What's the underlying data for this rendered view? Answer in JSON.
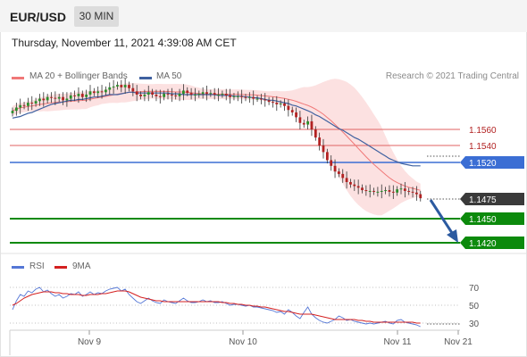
{
  "header": {
    "symbol": "EUR/USD",
    "timeframe": "30 MIN"
  },
  "datetime": "Thursday, November 11, 2021 4:39:08 AM CET",
  "copyright": "Research © 2021 Trading Central",
  "colors": {
    "ma20": "#f07878",
    "bollinger_fill": "#fbd7d7",
    "ma50": "#3f61a0",
    "candle_up": "#2a8f2a",
    "candle_down": "#b22222",
    "resistance": "#e06262",
    "pivot": "#3b6ed4",
    "support": "#0c8a0c",
    "last_price": "#3a3a3a",
    "arrow": "#2c5aa0",
    "rsi": "#5577d6",
    "rsi_ma": "#d42020"
  },
  "chart_data": [
    {
      "type": "candlestick",
      "legend": [
        {
          "name": "MA 20 + Bollinger Bands",
          "color": "#f07878"
        },
        {
          "name": "MA 50",
          "color": "#3f61a0"
        }
      ],
      "x_ticks": [
        "Nov 9",
        "Nov 10",
        "Nov 11",
        "Nov 21"
      ],
      "levels": [
        {
          "label": "1.1560",
          "kind": "resistance"
        },
        {
          "label": "1.1540",
          "kind": "resistance"
        },
        {
          "label": "1.1520",
          "kind": "pivot"
        },
        {
          "label": "1.1475",
          "kind": "last"
        },
        {
          "label": "1.1450",
          "kind": "support"
        },
        {
          "label": "1.1420",
          "kind": "support"
        }
      ],
      "price_scale": {
        "ref_price_a": 1.156,
        "ref_price_b": 1.142
      },
      "candles_close": [
        1.1583,
        1.1587,
        1.159,
        1.1589,
        1.1593,
        1.1592,
        1.1595,
        1.1598,
        1.1596,
        1.16,
        1.1599,
        1.1598,
        1.16,
        1.1596,
        1.1598,
        1.1602,
        1.1601,
        1.1604,
        1.16,
        1.1603,
        1.1607,
        1.1605,
        1.1607,
        1.1606,
        1.1609,
        1.1612,
        1.1613,
        1.1615,
        1.1612,
        1.1615,
        1.1611,
        1.1607,
        1.1603,
        1.1601,
        1.1603,
        1.1606,
        1.1603,
        1.1601,
        1.16,
        1.1604,
        1.1603,
        1.1602,
        1.1601,
        1.1604,
        1.1608,
        1.1605,
        1.1603,
        1.1603,
        1.1604,
        1.1606,
        1.1604,
        1.1605,
        1.1603,
        1.1603,
        1.1604,
        1.1602,
        1.16,
        1.1601,
        1.1601,
        1.16,
        1.1599,
        1.16,
        1.1598,
        1.1598,
        1.1597,
        1.1596,
        1.1594,
        1.1593,
        1.1591,
        1.1592,
        1.1589,
        1.1584,
        1.1581,
        1.1575,
        1.1568,
        1.1566,
        1.157,
        1.156,
        1.155,
        1.154,
        1.1532,
        1.1522,
        1.1515,
        1.1508,
        1.1505,
        1.15,
        1.1495,
        1.1492,
        1.149,
        1.1488,
        1.1485,
        1.1484,
        1.1484,
        1.1483,
        1.1483,
        1.1484,
        1.1485,
        1.1483,
        1.1482,
        1.1486,
        1.1487,
        1.1484,
        1.1483,
        1.1482,
        1.148,
        1.1475
      ],
      "ma50": [
        1.1574,
        1.1575,
        1.1576,
        1.1578,
        1.158,
        1.1581,
        1.1583,
        1.1585,
        1.1587,
        1.1589,
        1.1591,
        1.1592,
        1.1593,
        1.1594,
        1.1595,
        1.1596,
        1.1596,
        1.1597,
        1.1597,
        1.1598,
        1.1599,
        1.16,
        1.16,
        1.1601,
        1.1602,
        1.1603,
        1.1603,
        1.1603,
        1.1604,
        1.1605,
        1.1606,
        1.1606,
        1.1605,
        1.1605,
        1.1605,
        1.1605,
        1.1605,
        1.1605,
        1.1605,
        1.1605,
        1.1605,
        1.1604,
        1.1604,
        1.1604,
        1.1603,
        1.1603,
        1.1603,
        1.1603,
        1.1603,
        1.1603,
        1.1603,
        1.1603,
        1.1603,
        1.1602,
        1.1602,
        1.1602,
        1.1602,
        1.1601,
        1.1601,
        1.1601,
        1.16,
        1.16,
        1.1599,
        1.1599,
        1.1598,
        1.1597,
        1.1596,
        1.1596,
        1.1595,
        1.1594,
        1.1593,
        1.1592,
        1.159,
        1.1589,
        1.1587,
        1.1585,
        1.1583,
        1.1581,
        1.1578,
        1.1576,
        1.1573,
        1.157,
        1.1567,
        1.1564,
        1.1561,
        1.1559,
        1.1556,
        1.1553,
        1.155,
        1.1548,
        1.1545,
        1.1542,
        1.1539,
        1.1536,
        1.1533,
        1.153,
        1.1527,
        1.1524,
        1.1522,
        1.152,
        1.1518,
        1.1517,
        1.1516,
        1.1515,
        1.1515,
        1.1515
      ]
    },
    {
      "type": "line",
      "legend": [
        {
          "name": "RSI",
          "color": "#5577d6"
        },
        {
          "name": "9MA",
          "color": "#d42020"
        }
      ],
      "y_ticks": [
        70,
        50,
        30
      ],
      "ylim": [
        20,
        80
      ],
      "rsi": [
        45,
        55,
        62,
        60,
        66,
        64,
        68,
        70,
        65,
        67,
        63,
        60,
        62,
        58,
        60,
        63,
        62,
        65,
        60,
        62,
        65,
        62,
        64,
        63,
        66,
        68,
        69,
        70,
        66,
        68,
        62,
        58,
        54,
        52,
        55,
        58,
        55,
        53,
        52,
        56,
        54,
        53,
        52,
        55,
        58,
        55,
        53,
        53,
        54,
        56,
        54,
        55,
        53,
        53,
        54,
        52,
        50,
        51,
        51,
        50,
        49,
        50,
        48,
        48,
        47,
        46,
        45,
        44,
        42,
        43,
        40,
        45,
        42,
        38,
        35,
        42,
        48,
        40,
        36,
        33,
        31,
        30,
        32,
        34,
        38,
        36,
        33,
        34,
        32,
        31,
        30,
        29,
        30,
        29,
        30,
        31,
        32,
        30,
        29,
        33,
        34,
        31,
        30,
        29,
        28,
        26
      ],
      "rsi_ma": [
        50,
        52,
        55,
        58,
        60,
        62,
        63,
        64,
        65,
        65,
        65,
        64,
        64,
        63,
        63,
        62,
        62,
        62,
        61,
        61,
        62,
        62,
        62,
        63,
        63,
        64,
        65,
        66,
        66,
        66,
        65,
        63,
        61,
        59,
        58,
        57,
        56,
        55,
        55,
        54,
        54,
        54,
        54,
        54,
        54,
        54,
        54,
        54,
        54,
        54,
        54,
        54,
        54,
        54,
        53,
        53,
        52,
        52,
        51,
        51,
        50,
        50,
        49,
        49,
        48,
        48,
        47,
        46,
        45,
        44,
        43,
        43,
        42,
        41,
        40,
        40,
        40,
        40,
        39,
        38,
        37,
        36,
        35,
        34,
        34,
        34,
        34,
        34,
        34,
        33,
        33,
        32,
        32,
        31,
        31,
        31,
        31,
        31,
        31,
        31,
        31,
        31,
        31,
        31,
        30,
        30
      ]
    }
  ]
}
